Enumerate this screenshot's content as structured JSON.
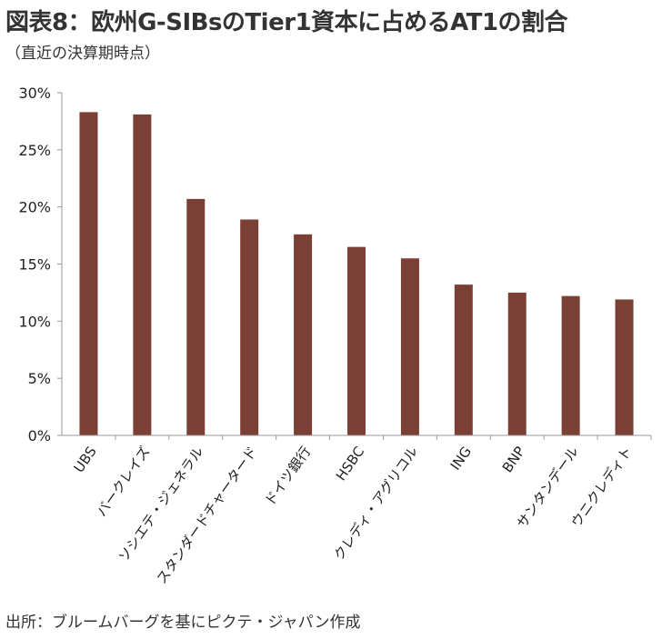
{
  "header": {
    "title": "図表8：欧州G-SIBsのTier1資本に占めるAT1の割合",
    "subtitle": "（直近の決算期時点）"
  },
  "footer": {
    "source": "出所：ブルームバーグを基にピクテ・ジャパン作成"
  },
  "colors": {
    "bar": "#7b4035",
    "axis": "#999999"
  },
  "chart_data": {
    "type": "bar",
    "categories": [
      "UBS",
      "バークレイズ",
      "ソシエテ・ジェネラル",
      "スタンダードチャータード",
      "ドイツ銀行",
      "HSBC",
      "クレディ・アグリコル",
      "ING",
      "BNP",
      "サンタンデール",
      "ウニクレディト"
    ],
    "values": [
      28.3,
      28.1,
      20.7,
      18.9,
      17.6,
      16.5,
      15.5,
      13.2,
      12.5,
      12.2,
      11.9
    ],
    "y_ticks": [
      "0%",
      "5%",
      "10%",
      "15%",
      "20%",
      "25%",
      "30%"
    ],
    "ylim": [
      0,
      30
    ],
    "grid": false,
    "title": "図表8：欧州G-SIBsのTier1資本に占めるAT1の割合",
    "xlabel": "",
    "ylabel": ""
  }
}
